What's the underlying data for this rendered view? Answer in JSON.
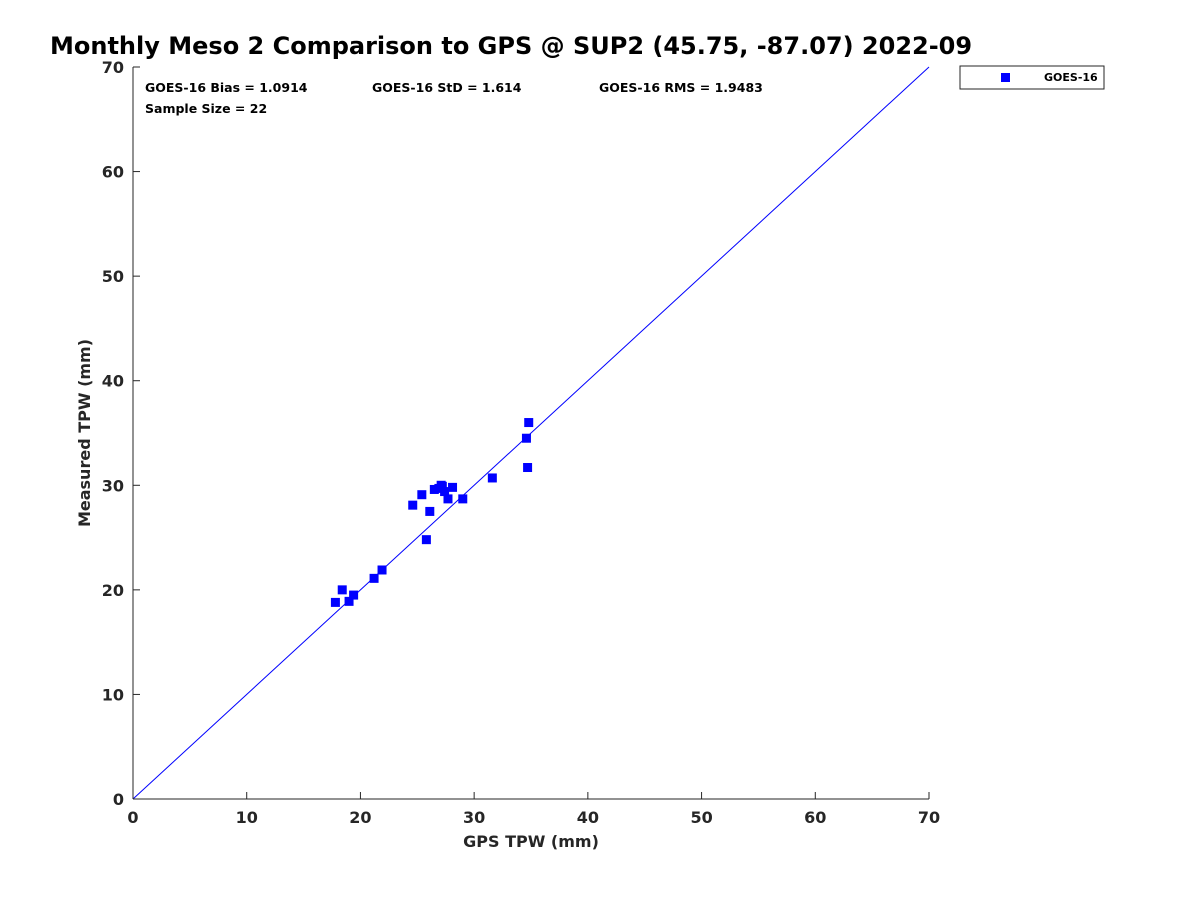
{
  "chart_data": {
    "type": "scatter",
    "title": "Monthly Meso 2 Comparison to GPS @ SUP2 (45.75, -87.07) 2022-09",
    "xlabel": "GPS TPW (mm)",
    "ylabel": "Measured TPW (mm)",
    "xlim": [
      0,
      70
    ],
    "ylim": [
      0,
      70
    ],
    "xticks": [
      0,
      10,
      20,
      30,
      40,
      50,
      60,
      70
    ],
    "yticks": [
      0,
      10,
      20,
      30,
      40,
      50,
      60,
      70
    ],
    "grid": false,
    "legend_position": "outside-top-right",
    "reference_line": {
      "type": "one-to-one",
      "from": [
        0,
        0
      ],
      "to": [
        70,
        70
      ],
      "color": "#0000ff"
    },
    "series": [
      {
        "name": "GOES-16",
        "color": "#0000ff",
        "marker": "square",
        "x": [
          17.8,
          18.4,
          19.0,
          19.4,
          21.2,
          21.9,
          24.6,
          25.4,
          25.8,
          26.1,
          26.5,
          26.9,
          27.1,
          27.2,
          27.4,
          27.7,
          28.1,
          29.0,
          31.6,
          34.6,
          34.7,
          34.8
        ],
        "y": [
          18.8,
          20.0,
          18.9,
          19.5,
          21.1,
          21.9,
          28.1,
          29.1,
          24.8,
          27.5,
          29.6,
          29.7,
          30.0,
          29.9,
          29.4,
          28.7,
          29.8,
          28.7,
          30.7,
          34.5,
          31.7,
          36.0
        ]
      }
    ],
    "annotations": {
      "bias": "GOES-16 Bias = 1.0914",
      "std": "GOES-16 StD = 1.614",
      "rms": "GOES-16 RMS = 1.9483",
      "sample_size": "Sample Size = 22"
    }
  }
}
